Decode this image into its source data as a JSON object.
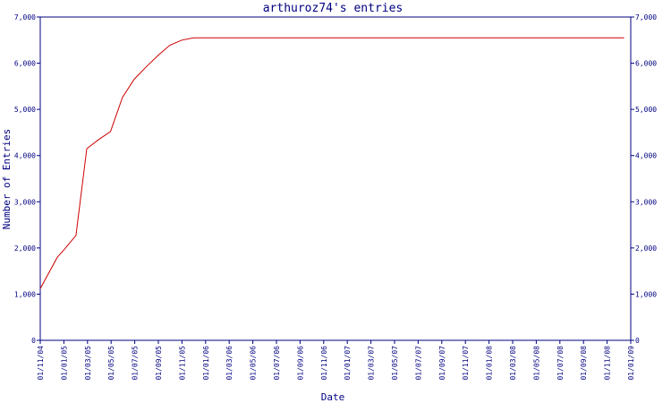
{
  "chart_data": {
    "type": "line",
    "title": "arthuroz74's entries",
    "xlabel": "Date",
    "ylabel": "Number of Entries",
    "ylim": [
      0,
      7000
    ],
    "y_ticks": [
      "0",
      "1,000",
      "2,000",
      "3,000",
      "4,000",
      "5,000",
      "6,000",
      "7,000"
    ],
    "y_ticks_right": true,
    "x_tick_labels": [
      "01/11/04",
      "01/01/05",
      "01/03/05",
      "01/05/05",
      "01/07/05",
      "01/09/05",
      "01/11/05",
      "01/01/06",
      "01/03/06",
      "01/05/06",
      "01/07/06",
      "01/09/06",
      "01/11/06",
      "01/01/07",
      "01/03/07",
      "01/05/07",
      "01/07/07",
      "01/09/07",
      "01/11/07",
      "01/01/08",
      "01/03/08",
      "01/05/08",
      "01/07/08",
      "01/09/08",
      "01/11/08",
      "01/01/09"
    ],
    "grid": false,
    "colors": {
      "line": "#cc0000",
      "axis": "#000080",
      "text": "#000080"
    },
    "series": [
      {
        "x": [
          "2004-11-01",
          "2004-12-15",
          "2005-01-01",
          "2005-02-01",
          "2005-03-01",
          "2005-04-01",
          "2005-05-01",
          "2005-06-01",
          "2005-07-01",
          "2005-08-01",
          "2005-09-01",
          "2005-10-01",
          "2005-11-01",
          "2005-12-01",
          "2006-06-01",
          "2007-06-01",
          "2008-06-01",
          "2008-12-15"
        ],
        "y": [
          1120,
          1800,
          1960,
          2270,
          4150,
          4350,
          4520,
          5260,
          5650,
          5920,
          6170,
          6390,
          6500,
          6550,
          6550,
          6550,
          6550,
          6550
        ]
      }
    ]
  }
}
